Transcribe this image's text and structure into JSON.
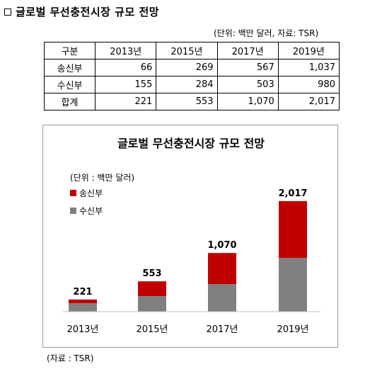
{
  "header": {
    "title": "글로벌 무선충전시장 규모 전망",
    "unit_note": "(단위: 백만 달러, 자료: TSR)"
  },
  "table": {
    "columns": [
      "구분",
      "2013년",
      "2015년",
      "2017년",
      "2019년"
    ],
    "rows": [
      {
        "label": "송신부",
        "cells": [
          "66",
          "269",
          "567",
          "1,037"
        ]
      },
      {
        "label": "수신부",
        "cells": [
          "155",
          "284",
          "503",
          "980"
        ]
      },
      {
        "label": "합계",
        "cells": [
          "221",
          "553",
          "1,070",
          "2,017"
        ]
      }
    ]
  },
  "chart_data": {
    "type": "bar",
    "stacked": true,
    "title": "글로벌 무선충전시장 규모 전망",
    "unit_label": "(단위 : 백만 달러)",
    "categories": [
      "2013년",
      "2015년",
      "2017년",
      "2019년"
    ],
    "series": [
      {
        "name": "수신부",
        "values": [
          155,
          284,
          503,
          980
        ],
        "color": "#808080"
      },
      {
        "name": "송신부",
        "values": [
          66,
          269,
          567,
          1037
        ],
        "color": "#c00000"
      }
    ],
    "totals": [
      221,
      553,
      1070,
      2017
    ],
    "total_labels": [
      "221",
      "553",
      "1,070",
      "2,017"
    ],
    "legend_position": "top-left",
    "grid": false,
    "ylim": [
      0,
      2300
    ]
  },
  "footer": {
    "source": "(자료 : TSR)"
  }
}
